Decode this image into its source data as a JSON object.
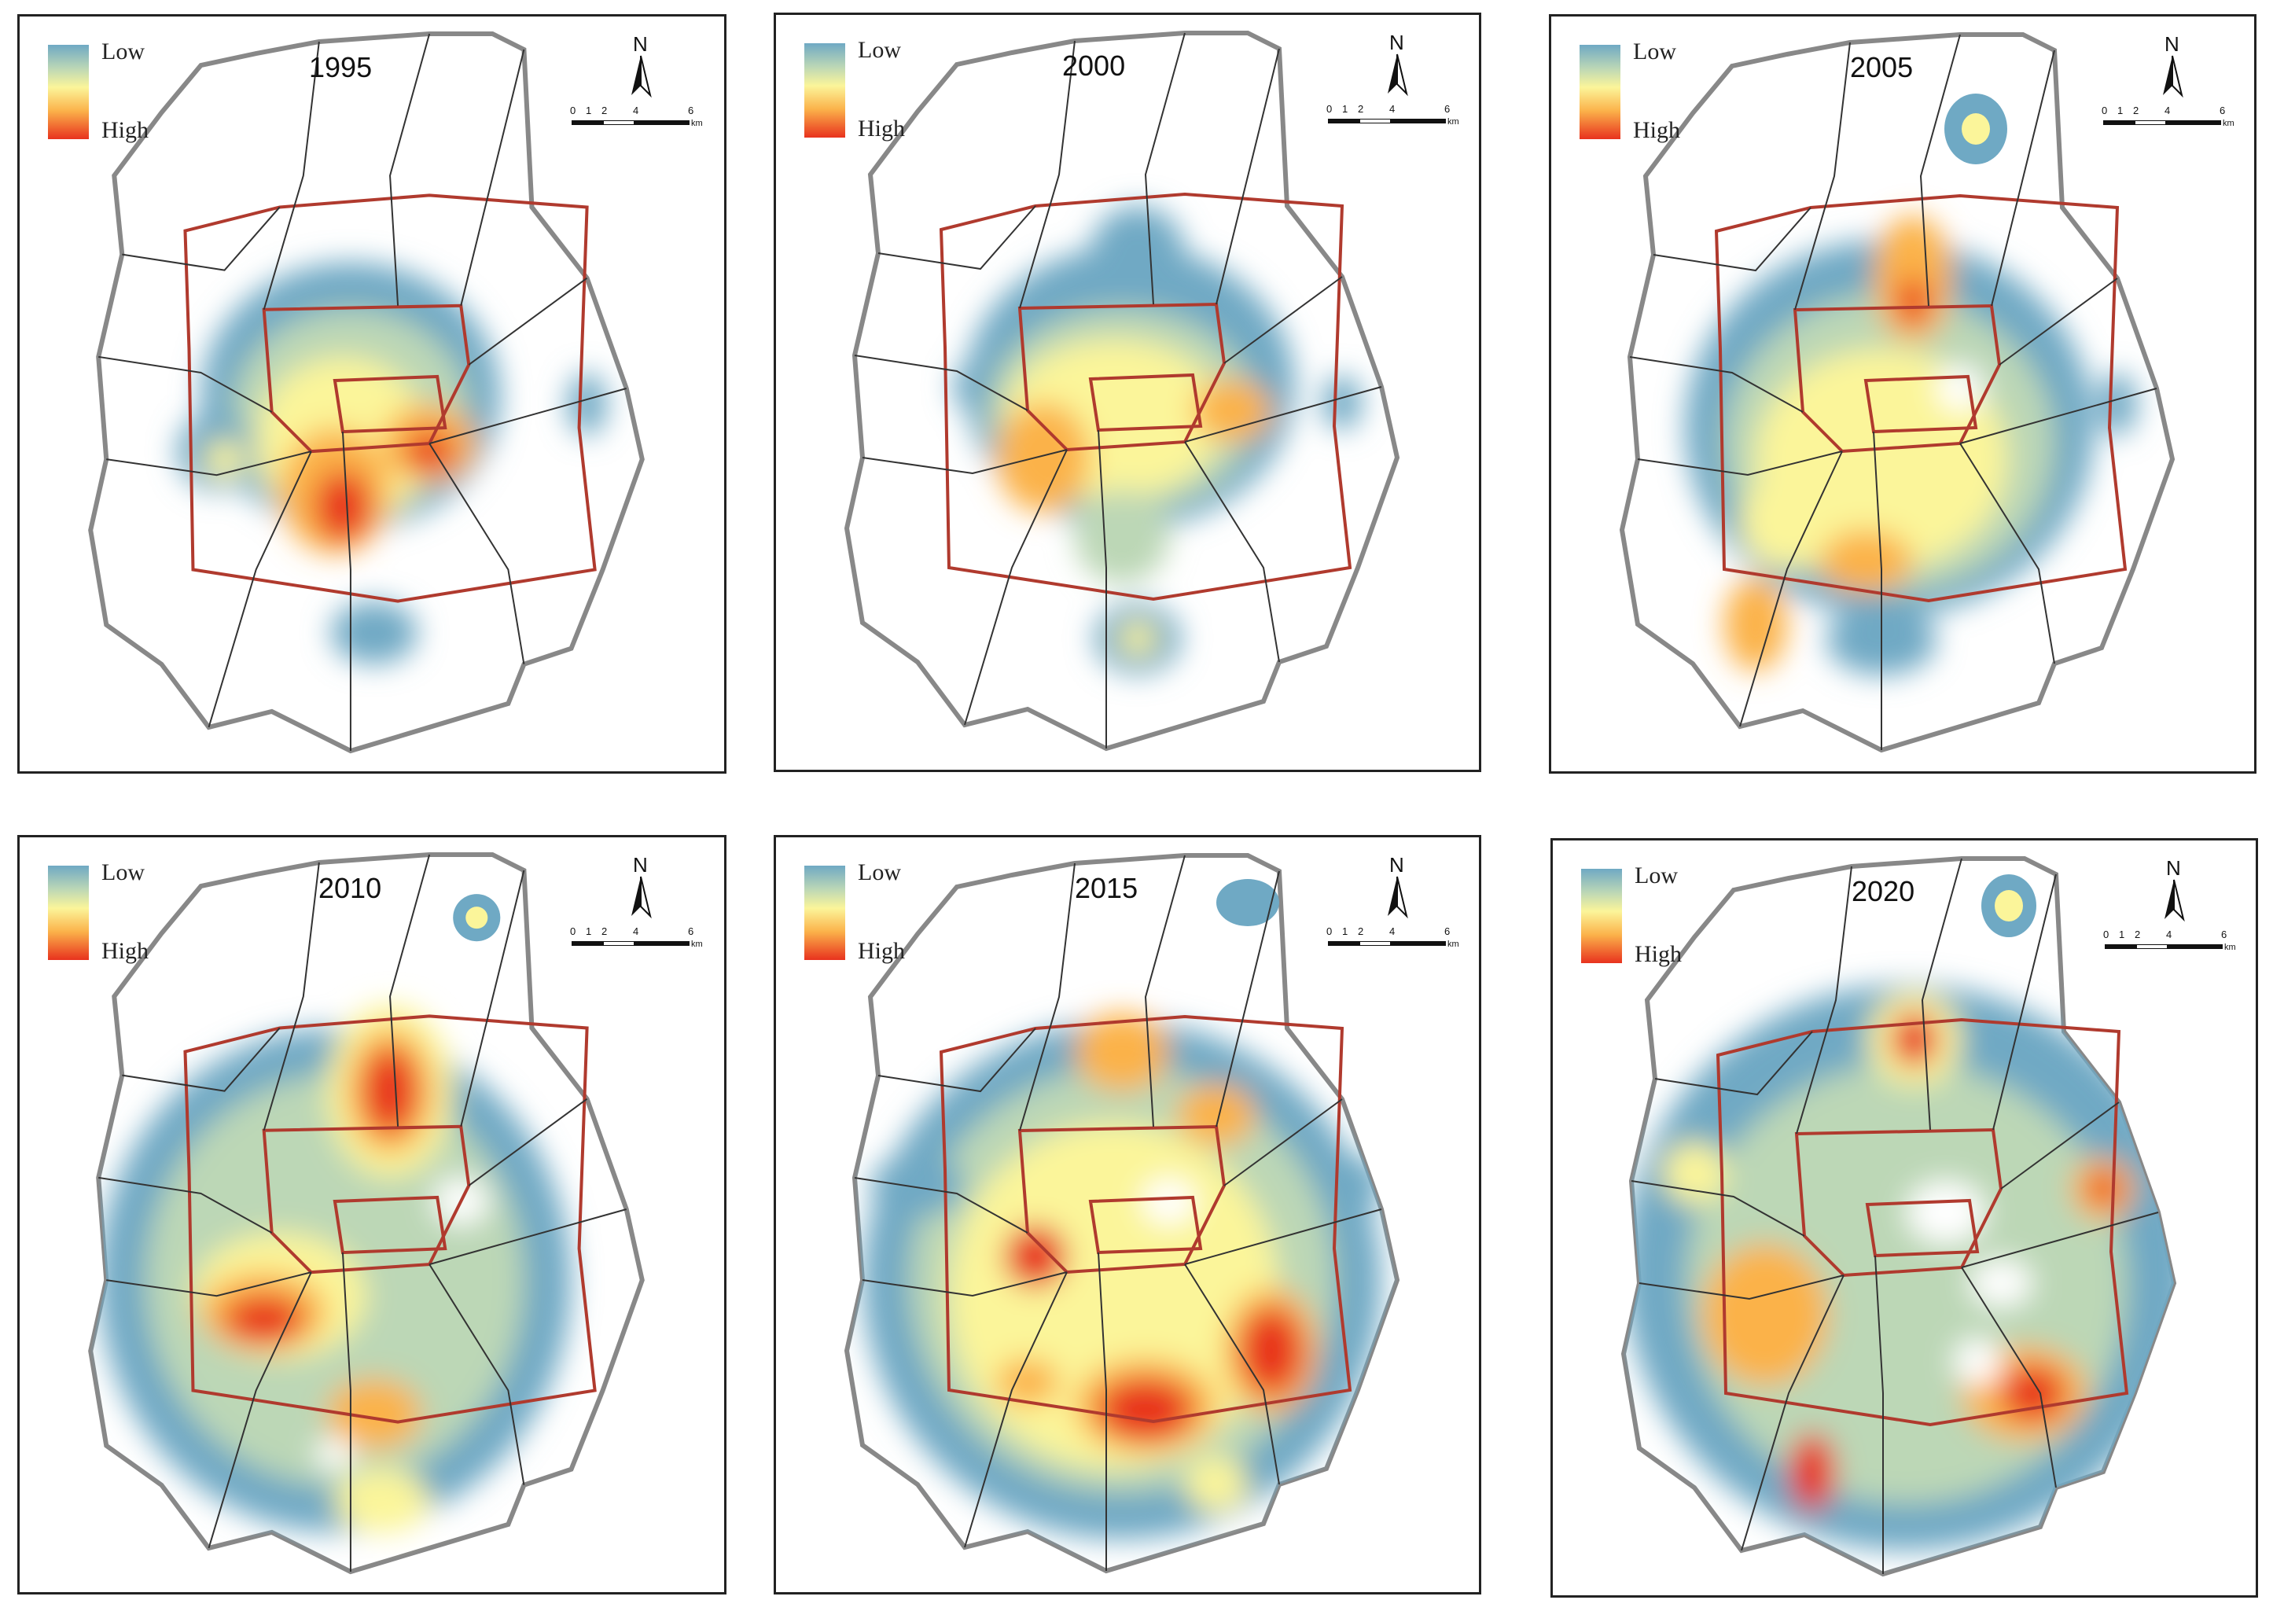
{
  "legend": {
    "low_label": "Low",
    "high_label": "High"
  },
  "north_label": "N",
  "scale": {
    "ticks": [
      "0",
      "1",
      "2",
      "4",
      "6"
    ],
    "unit": "km"
  },
  "colors": {
    "low": "#6fa9c4",
    "mid_low": "#bcd7b6",
    "mid": "#fbf59a",
    "mid_high": "#fbb24a",
    "high": "#e8321e",
    "road": "#b03a2e",
    "boundary": "#888888"
  },
  "panels": [
    {
      "year": "1995"
    },
    {
      "year": "2000"
    },
    {
      "year": "2005"
    },
    {
      "year": "2010"
    },
    {
      "year": "2015"
    },
    {
      "year": "2020"
    }
  ]
}
